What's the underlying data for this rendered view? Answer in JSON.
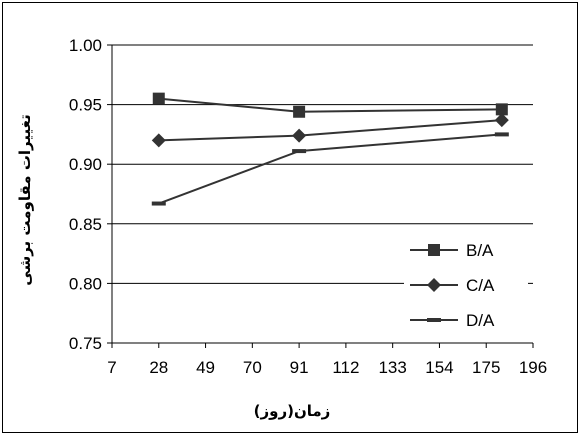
{
  "chart_data": {
    "type": "line",
    "xlabel": "زمان(روز)",
    "ylabel": "تغییرات مقاومت برشی",
    "xlim": [
      7,
      196
    ],
    "ylim": [
      0.75,
      1.0
    ],
    "x_ticks": [
      "7",
      "28",
      "49",
      "70",
      "91",
      "112",
      "133",
      "154",
      "175",
      "196"
    ],
    "y_ticks": [
      "0.75",
      "0.80",
      "0.85",
      "0.90",
      "0.95",
      "1.00"
    ],
    "grid": "horizontal major gridlines",
    "legend_position": "right",
    "series": [
      {
        "name": "B/A",
        "marker": "square",
        "x": [
          28,
          91,
          182
        ],
        "y": [
          0.955,
          0.944,
          0.946
        ]
      },
      {
        "name": "C/A",
        "marker": "diamond",
        "x": [
          28,
          91,
          182
        ],
        "y": [
          0.92,
          0.924,
          0.937
        ]
      },
      {
        "name": "D/A",
        "marker": "dash",
        "x": [
          28,
          91,
          182
        ],
        "y": [
          0.867,
          0.911,
          0.925
        ]
      }
    ]
  }
}
